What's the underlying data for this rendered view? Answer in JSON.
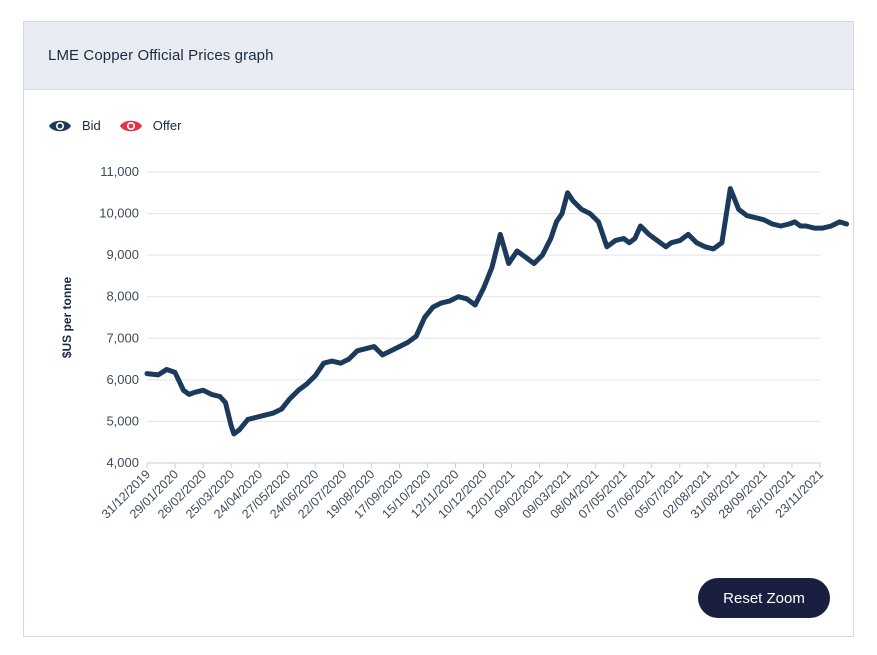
{
  "card": {
    "title": "LME Copper Official Prices graph"
  },
  "legend": [
    {
      "label": "Bid",
      "color": "#1b3a5c",
      "icon": "eye-icon"
    },
    {
      "label": "Offer",
      "color": "#e0344a",
      "icon": "eye-icon"
    }
  ],
  "reset_zoom_label": "Reset Zoom",
  "chart_data": {
    "type": "line",
    "title": "LME Copper Official Prices graph",
    "xlabel": "",
    "ylabel": "$US per tonne",
    "ylim": [
      4000,
      11000
    ],
    "yticks": [
      4000,
      5000,
      6000,
      7000,
      8000,
      9000,
      10000,
      11000
    ],
    "ytick_labels": [
      "4,000",
      "5,000",
      "6,000",
      "7,000",
      "8,000",
      "9,000",
      "10,000",
      "11,000"
    ],
    "xtick_labels": [
      "31/12/2019",
      "29/01/2020",
      "26/02/2020",
      "25/03/2020",
      "24/04/2020",
      "27/05/2020",
      "24/06/2020",
      "22/07/2020",
      "19/08/2020",
      "17/09/2020",
      "15/10/2020",
      "12/11/2020",
      "10/12/2020",
      "12/01/2021",
      "09/02/2021",
      "09/03/2021",
      "08/04/2021",
      "07/05/2021",
      "07/06/2021",
      "05/07/2021",
      "02/08/2021",
      "31/08/2021",
      "28/09/2021",
      "26/10/2021",
      "23/11/2021"
    ],
    "grid": true,
    "series": [
      {
        "name": "Bid",
        "color": "#1b3a5c",
        "x": [
          0,
          0.4,
          0.7,
          1.0,
          1.3,
          1.5,
          1.7,
          2.0,
          2.3,
          2.6,
          2.8,
          3.0,
          3.1,
          3.3,
          3.6,
          3.9,
          4.2,
          4.5,
          4.8,
          5.1,
          5.4,
          5.7,
          6.0,
          6.3,
          6.6,
          6.9,
          7.2,
          7.5,
          7.8,
          8.1,
          8.4,
          8.7,
          9.0,
          9.3,
          9.6,
          9.9,
          10.2,
          10.5,
          10.8,
          11.1,
          11.4,
          11.7,
          12.0,
          12.3,
          12.6,
          12.9,
          13.2,
          13.5,
          13.8,
          14.1,
          14.4,
          14.6,
          14.8,
          15.0,
          15.2,
          15.5,
          15.8,
          16.1,
          16.4,
          16.7,
          17.0,
          17.2,
          17.4,
          17.6,
          17.9,
          18.2,
          18.5,
          18.7,
          19.0,
          19.3,
          19.6,
          19.9,
          20.2,
          20.5,
          20.8,
          21.1,
          21.4,
          21.7,
          22.0,
          22.3,
          22.6,
          22.9,
          23.1,
          23.3,
          23.5,
          23.8,
          24.1,
          24.4,
          24.7,
          24.95
        ],
        "values": [
          6150,
          6120,
          6250,
          6180,
          5750,
          5650,
          5700,
          5750,
          5650,
          5600,
          5450,
          4900,
          4700,
          4800,
          5050,
          5100,
          5150,
          5200,
          5300,
          5550,
          5750,
          5900,
          6100,
          6400,
          6450,
          6400,
          6500,
          6700,
          6750,
          6800,
          6600,
          6700,
          6800,
          6900,
          7050,
          7500,
          7750,
          7850,
          7900,
          8000,
          7950,
          7800,
          8200,
          8700,
          9500,
          8800,
          9100,
          8950,
          8800,
          9000,
          9400,
          9800,
          10000,
          10500,
          10300,
          10100,
          10000,
          9800,
          9200,
          9350,
          9400,
          9300,
          9400,
          9700,
          9500,
          9350,
          9200,
          9300,
          9350,
          9500,
          9300,
          9200,
          9150,
          9300,
          10600,
          10100,
          9950,
          9900,
          9850,
          9750,
          9700,
          9750,
          9800,
          9700,
          9700,
          9650,
          9650,
          9700,
          9800,
          9750
        ]
      }
    ]
  }
}
